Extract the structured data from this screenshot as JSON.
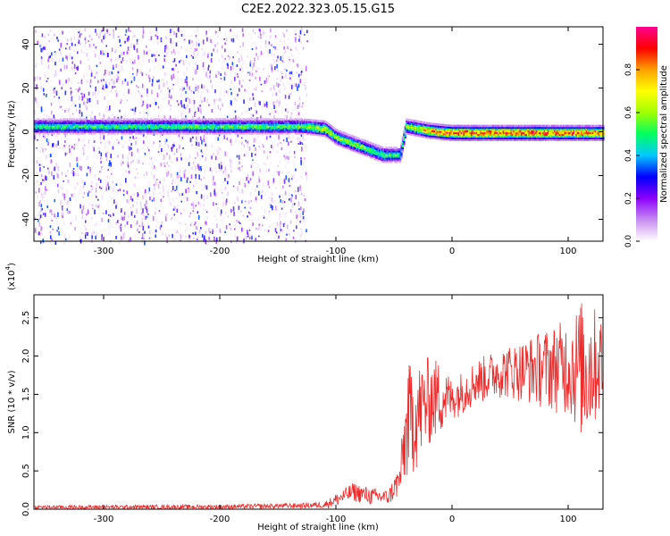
{
  "title": "C2E2.2022.323.05.15.G15",
  "chart_data": [
    {
      "type": "heatmap",
      "xlabel": "Height of straight line (km)",
      "ylabel": "Frequency (Hz)",
      "xlim": [
        -360,
        130
      ],
      "ylim": [
        -50,
        48
      ],
      "xticks": [
        -300,
        -200,
        -100,
        0,
        100
      ],
      "yticks": [
        -40,
        -20,
        0,
        20,
        40
      ],
      "colorbar": {
        "label": "Normalized spectral amplitude",
        "range": [
          0.0,
          1.0
        ],
        "ticks": [
          0.0,
          0.2,
          0.4,
          0.6,
          0.8
        ],
        "colormap": [
          "#ffffff",
          "#c78cf0",
          "#8c00ff",
          "#0000ff",
          "#00c8ff",
          "#00ff60",
          "#a0ff00",
          "#ffff00",
          "#ffa000",
          "#ff0000",
          "#ff0090"
        ]
      },
      "ridge": [
        {
          "x": -360,
          "y": 3,
          "amp": 0.5
        },
        {
          "x": -130,
          "y": 3,
          "amp": 0.55
        },
        {
          "x": -110,
          "y": 2,
          "amp": 0.7
        },
        {
          "x": -100,
          "y": -2,
          "amp": 0.6
        },
        {
          "x": -80,
          "y": -6,
          "amp": 0.6
        },
        {
          "x": -60,
          "y": -10,
          "amp": 0.55
        },
        {
          "x": -45,
          "y": -10,
          "amp": 0.5
        },
        {
          "x": -40,
          "y": 3,
          "amp": 0.6
        },
        {
          "x": -20,
          "y": 1,
          "amp": 0.8
        },
        {
          "x": 0,
          "y": 0,
          "amp": 0.9
        },
        {
          "x": 130,
          "y": 0,
          "amp": 0.85
        }
      ],
      "noise_region": [
        -360,
        -125
      ]
    },
    {
      "type": "line",
      "xlabel": "Height of straight line (km)",
      "ylabel": "SNR (10 * v/v)",
      "multiplier_label": "(x10",
      "multiplier_exp": "4",
      "xlim": [
        -360,
        130
      ],
      "ylim": [
        0,
        2.8
      ],
      "xticks": [
        -300,
        -200,
        -100,
        0,
        100
      ],
      "yticks": [
        0.0,
        0.5,
        1.0,
        1.5,
        2.0,
        2.5
      ],
      "color": "#ee2a2a",
      "series_envelope": {
        "x": [
          -360,
          -200,
          -130,
          -110,
          -100,
          -85,
          -70,
          -55,
          -45,
          -38,
          -30,
          -20,
          -10,
          0,
          20,
          40,
          60,
          80,
          100,
          115,
          130
        ],
        "lo": [
          0.0,
          0.0,
          0.01,
          0.01,
          0.03,
          0.1,
          0.05,
          0.05,
          0.15,
          0.35,
          0.5,
          0.8,
          0.95,
          1.15,
          1.35,
          1.45,
          1.4,
          1.3,
          1.2,
          0.8,
          1.3
        ],
        "hi": [
          0.05,
          0.06,
          0.08,
          0.1,
          0.2,
          0.35,
          0.28,
          0.25,
          0.6,
          1.9,
          1.9,
          2.0,
          1.95,
          1.7,
          1.95,
          2.1,
          2.2,
          2.35,
          2.5,
          2.8,
          2.5
        ]
      }
    }
  ]
}
